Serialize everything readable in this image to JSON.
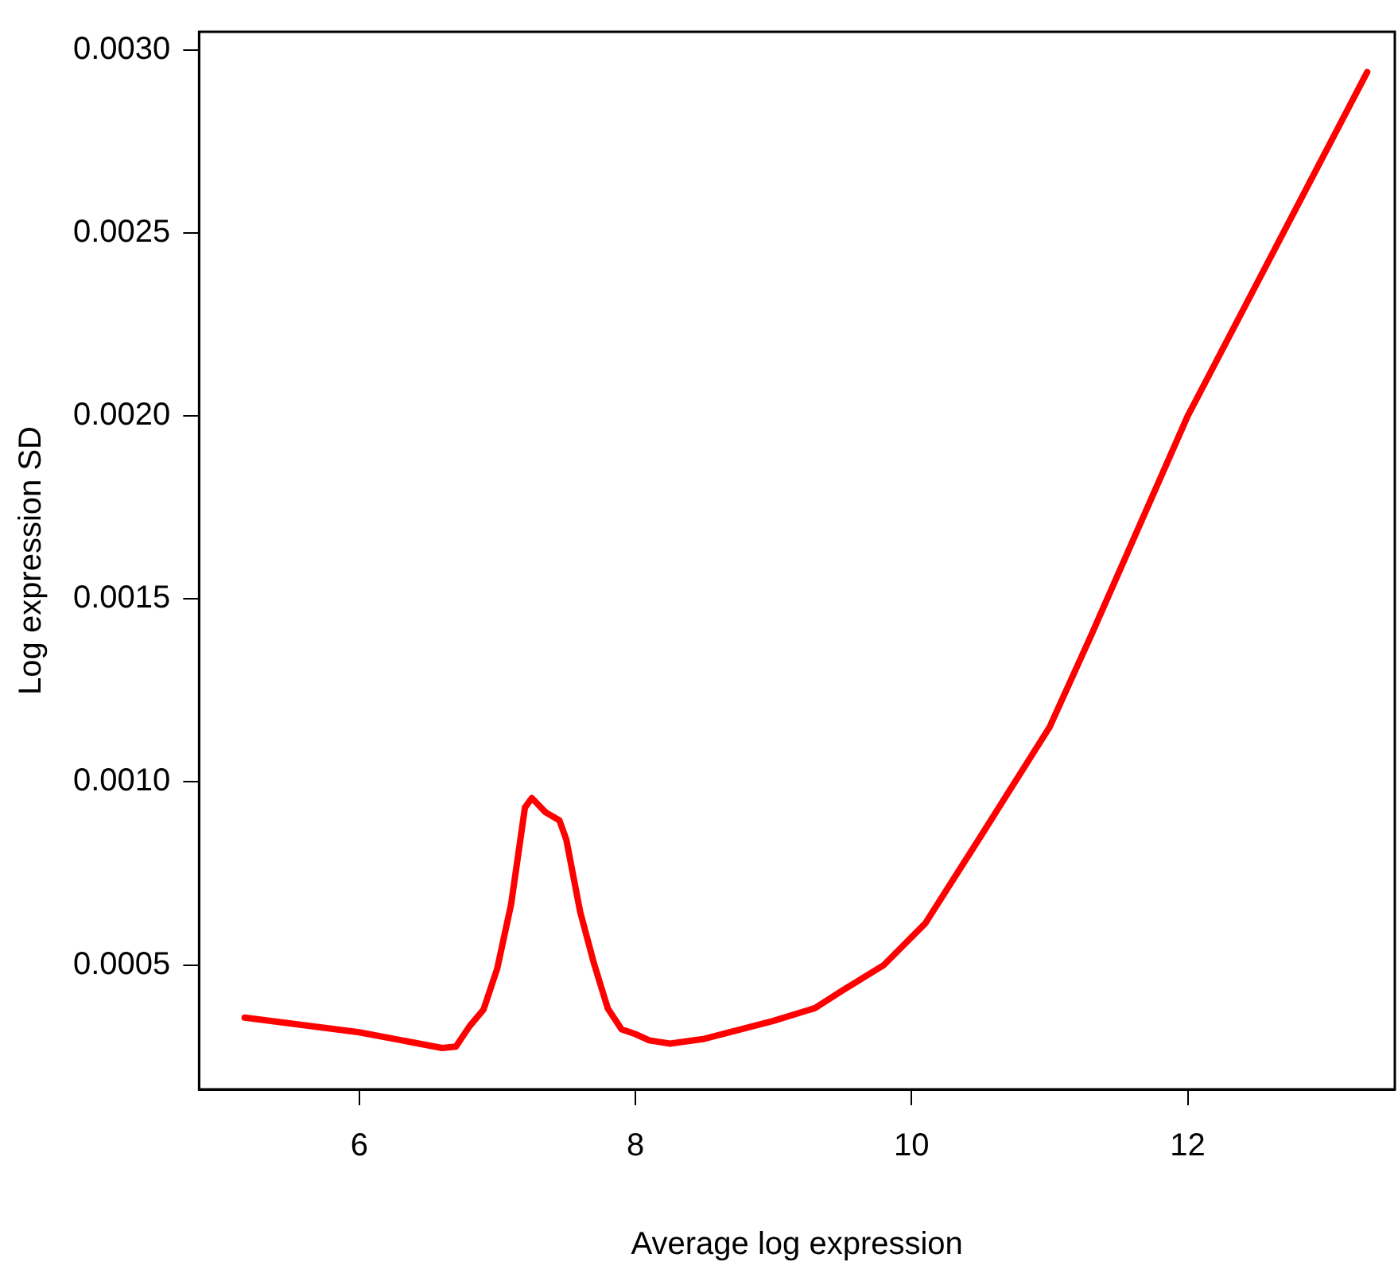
{
  "chart_data": {
    "type": "line",
    "xlabel": "Average log expression",
    "ylabel": "Log expression SD",
    "x": [
      5.17,
      6.0,
      6.6,
      6.7,
      6.8,
      6.9,
      7.0,
      7.1,
      7.2,
      7.25,
      7.35,
      7.45,
      7.5,
      7.6,
      7.7,
      7.8,
      7.9,
      8.0,
      8.1,
      8.25,
      8.5,
      9.0,
      9.3,
      9.5,
      9.8,
      10.1,
      10.5,
      11.0,
      11.3,
      12.0,
      13.3
    ],
    "series": [
      {
        "color": "#ff0000",
        "values": [
          0.000356,
          0.000316,
          0.000273,
          0.000277,
          0.000333,
          0.000378,
          0.000491,
          0.000666,
          0.00093,
          0.000956,
          0.000917,
          0.000895,
          0.000842,
          0.000645,
          0.000504,
          0.000381,
          0.000324,
          0.000311,
          0.000294,
          0.000285,
          0.000298,
          0.000347,
          0.000382,
          0.00043,
          0.0005,
          0.000614,
          0.000851,
          0.00115,
          0.0014,
          0.002,
          0.00294
        ]
      }
    ],
    "xlim": [
      4.84,
      13.5
    ],
    "xticks": [
      6,
      8,
      10,
      12
    ],
    "ylim": [
      0.00016,
      0.00305
    ],
    "yticks": [
      {
        "value": 0.0005,
        "label": "0.0005"
      },
      {
        "value": 0.001,
        "label": "0.0010"
      },
      {
        "value": 0.0015,
        "label": "0.0015"
      },
      {
        "value": 0.002,
        "label": "0.0020"
      },
      {
        "value": 0.0025,
        "label": "0.0025"
      },
      {
        "value": 0.003,
        "label": "0.0030"
      }
    ],
    "grid": false,
    "legend": false,
    "marker": "none",
    "line_style": "solid"
  }
}
